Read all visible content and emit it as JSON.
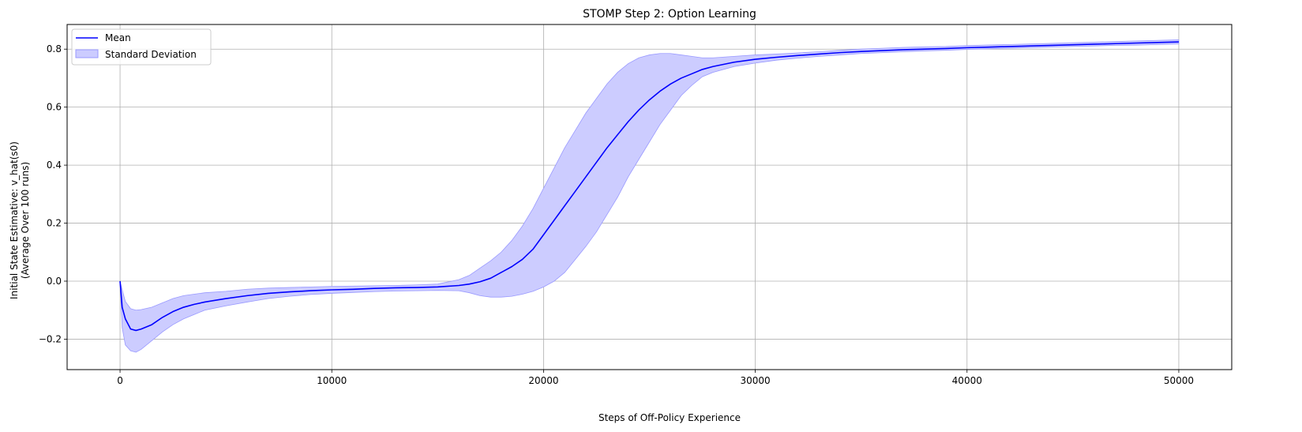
{
  "chart_data": {
    "type": "line",
    "title": "STOMP Step 2: Option Learning",
    "xlabel": "Steps of Off-Policy Experience",
    "ylabel_lines": [
      "Initial State Estimative: v_hat(s0)",
      "(Average Over 100 runs)"
    ],
    "xlim": [
      -2500,
      52500
    ],
    "ylim": [
      -0.305,
      0.885
    ],
    "x_ticks": [
      0,
      10000,
      20000,
      30000,
      40000,
      50000
    ],
    "x_tick_labels": [
      "0",
      "10000",
      "20000",
      "30000",
      "40000",
      "50000"
    ],
    "y_ticks": [
      -0.2,
      0.0,
      0.2,
      0.4,
      0.6,
      0.8
    ],
    "y_tick_labels": [
      "−0.2",
      "0.0",
      "0.2",
      "0.4",
      "0.6",
      "0.8"
    ],
    "grid": true,
    "legend_placement": "top-left",
    "colors": {
      "line": "#0000ff",
      "band_fill": "#ccccff",
      "band_edge": "#9999ff",
      "grid": "#b0b0b0"
    },
    "series": [
      {
        "name": "Mean",
        "kind": "line",
        "x": [
          0,
          100,
          250,
          500,
          750,
          1000,
          1500,
          2000,
          2500,
          3000,
          3500,
          4000,
          5000,
          6000,
          7000,
          8000,
          9000,
          10000,
          11000,
          12000,
          13000,
          14000,
          15000,
          16000,
          16500,
          17000,
          17500,
          18000,
          18500,
          19000,
          19500,
          20000,
          20500,
          21000,
          21500,
          22000,
          22500,
          23000,
          23500,
          24000,
          24500,
          25000,
          25500,
          26000,
          26500,
          27000,
          27500,
          28000,
          29000,
          30000,
          31000,
          32000,
          33000,
          34000,
          35000,
          36000,
          37000,
          38000,
          39000,
          40000,
          41000,
          42000,
          43000,
          44000,
          45000,
          46000,
          47000,
          48000,
          49000,
          50000
        ],
        "y": [
          0.0,
          -0.09,
          -0.13,
          -0.165,
          -0.17,
          -0.165,
          -0.15,
          -0.125,
          -0.105,
          -0.09,
          -0.08,
          -0.072,
          -0.06,
          -0.05,
          -0.042,
          -0.037,
          -0.033,
          -0.03,
          -0.028,
          -0.025,
          -0.023,
          -0.022,
          -0.02,
          -0.015,
          -0.01,
          -0.002,
          0.01,
          0.03,
          0.05,
          0.075,
          0.11,
          0.16,
          0.21,
          0.26,
          0.31,
          0.36,
          0.41,
          0.46,
          0.505,
          0.55,
          0.59,
          0.625,
          0.655,
          0.68,
          0.7,
          0.715,
          0.73,
          0.74,
          0.755,
          0.765,
          0.772,
          0.778,
          0.783,
          0.788,
          0.792,
          0.795,
          0.798,
          0.8,
          0.802,
          0.805,
          0.807,
          0.809,
          0.811,
          0.813,
          0.815,
          0.817,
          0.819,
          0.821,
          0.823,
          0.825
        ]
      },
      {
        "name": "Standard Deviation",
        "kind": "band",
        "x": [
          0,
          100,
          250,
          500,
          750,
          1000,
          1500,
          2000,
          2500,
          3000,
          3500,
          4000,
          5000,
          6000,
          7000,
          8000,
          9000,
          10000,
          11000,
          12000,
          13000,
          14000,
          15000,
          16000,
          16500,
          17000,
          17500,
          18000,
          18500,
          19000,
          19500,
          20000,
          20500,
          21000,
          21500,
          22000,
          22500,
          23000,
          23500,
          24000,
          24500,
          25000,
          25500,
          26000,
          26500,
          27000,
          27500,
          28000,
          29000,
          30000,
          31000,
          32000,
          33000,
          34000,
          35000,
          36000,
          37000,
          38000,
          39000,
          40000,
          41000,
          42000,
          43000,
          44000,
          45000,
          46000,
          47000,
          48000,
          49000,
          50000
        ],
        "lower": [
          0.0,
          -0.16,
          -0.22,
          -0.24,
          -0.245,
          -0.235,
          -0.205,
          -0.175,
          -0.15,
          -0.13,
          -0.115,
          -0.1,
          -0.085,
          -0.072,
          -0.06,
          -0.052,
          -0.046,
          -0.042,
          -0.039,
          -0.036,
          -0.034,
          -0.033,
          -0.032,
          -0.033,
          -0.04,
          -0.05,
          -0.055,
          -0.055,
          -0.052,
          -0.045,
          -0.035,
          -0.02,
          0.0,
          0.03,
          0.075,
          0.12,
          0.17,
          0.23,
          0.29,
          0.36,
          0.42,
          0.48,
          0.54,
          0.59,
          0.64,
          0.675,
          0.705,
          0.72,
          0.74,
          0.752,
          0.762,
          0.769,
          0.775,
          0.78,
          0.785,
          0.788,
          0.791,
          0.794,
          0.796,
          0.799,
          0.801,
          0.803,
          0.805,
          0.807,
          0.809,
          0.811,
          0.813,
          0.814,
          0.816,
          0.818
        ],
        "upper": [
          0.0,
          -0.03,
          -0.07,
          -0.095,
          -0.1,
          -0.098,
          -0.09,
          -0.075,
          -0.06,
          -0.05,
          -0.045,
          -0.04,
          -0.035,
          -0.028,
          -0.024,
          -0.022,
          -0.02,
          -0.018,
          -0.017,
          -0.016,
          -0.015,
          -0.013,
          -0.01,
          0.005,
          0.02,
          0.045,
          0.07,
          0.1,
          0.14,
          0.19,
          0.25,
          0.32,
          0.39,
          0.46,
          0.52,
          0.58,
          0.63,
          0.68,
          0.72,
          0.75,
          0.77,
          0.78,
          0.785,
          0.785,
          0.78,
          0.775,
          0.77,
          0.77,
          0.775,
          0.78,
          0.783,
          0.787,
          0.791,
          0.796,
          0.8,
          0.803,
          0.806,
          0.808,
          0.809,
          0.812,
          0.814,
          0.816,
          0.818,
          0.82,
          0.822,
          0.824,
          0.826,
          0.828,
          0.83,
          0.832
        ]
      }
    ]
  }
}
